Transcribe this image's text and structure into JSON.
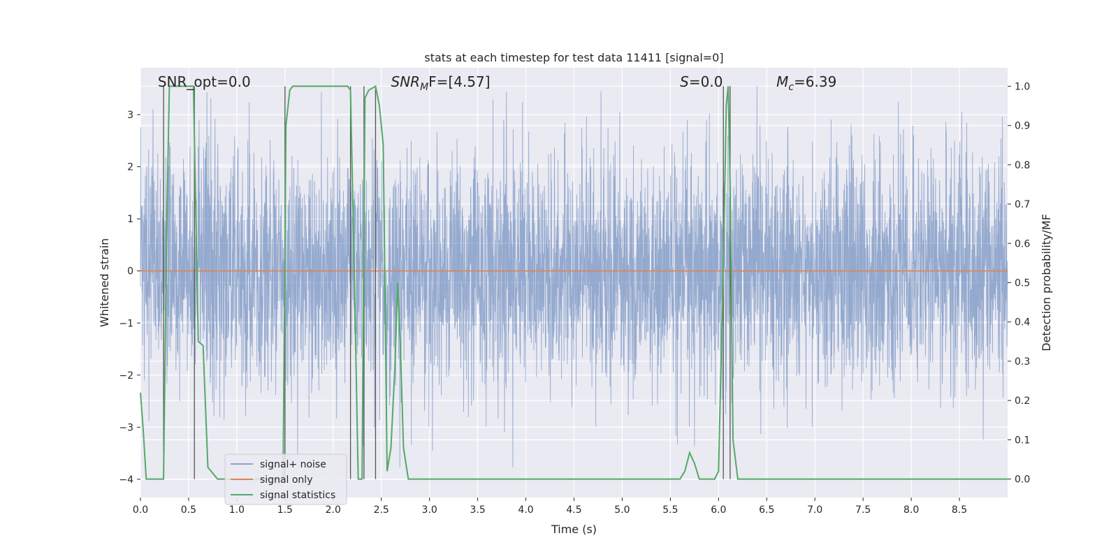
{
  "chart_data": {
    "type": "line",
    "title": "stats at each timestep for test data 11411 [signal=0]",
    "xlabel": "Time (s)",
    "ylabel": "Whitened strain",
    "y2label": "Detection probability/MF",
    "xlim": [
      0.0,
      9.0
    ],
    "ylim": [
      -4.35,
      3.9
    ],
    "y2lim": [
      -0.047,
      1.047
    ],
    "xticks": [
      "0.0",
      "0.5",
      "1.0",
      "1.5",
      "2.0",
      "2.5",
      "3.0",
      "3.5",
      "4.0",
      "4.5",
      "5.0",
      "5.5",
      "6.0",
      "6.5",
      "7.0",
      "7.5",
      "8.0",
      "8.5"
    ],
    "yticks": [
      "3",
      "2",
      "1",
      "0",
      "−1",
      "−2",
      "−3",
      "−4"
    ],
    "y2ticks": [
      "1.0",
      "0.9",
      "0.8",
      "0.7",
      "0.6",
      "0.5",
      "0.4",
      "0.3",
      "0.2",
      "0.1",
      "0.0"
    ],
    "grid": true,
    "legend_position": "lower-left",
    "annotations": [
      {
        "kind": "plain",
        "text": "SNR_opt=0.0",
        "x": 0.18
      },
      {
        "kind": "math",
        "base": "SNR",
        "sub": "M",
        "rest": "F=[4.57]",
        "x": 2.6
      },
      {
        "kind": "math",
        "base": "S",
        "sub": "",
        "rest": "=0.0",
        "x": 5.6
      },
      {
        "kind": "math",
        "base": "M",
        "sub": "c",
        "rest": "=6.39",
        "x": 6.6
      }
    ],
    "vlines_x": [
      0.24,
      0.56,
      1.5,
      2.18,
      2.32,
      2.44,
      6.05,
      6.12
    ],
    "series": [
      {
        "name": "signal+ noise",
        "color": "#4c72b0",
        "axis": "left",
        "style": "noise",
        "duration": 9.0,
        "sigma": 1.1
      },
      {
        "name": "signal only",
        "color": "#dd8452",
        "axis": "left",
        "x": [
          0.0,
          9.0
        ],
        "y": [
          0.0,
          0.0
        ]
      },
      {
        "name": "signal statistics",
        "color": "#55a868",
        "axis": "right",
        "x": [
          0.0,
          0.03,
          0.06,
          0.1,
          0.15,
          0.2,
          0.24,
          0.27,
          0.3,
          0.35,
          0.4,
          0.45,
          0.5,
          0.55,
          0.6,
          0.65,
          0.7,
          0.8,
          0.9,
          1.0,
          1.2,
          1.4,
          1.48,
          1.51,
          1.55,
          1.58,
          1.65,
          1.8,
          2.0,
          2.15,
          2.18,
          2.22,
          2.26,
          2.3,
          2.33,
          2.37,
          2.44,
          2.48,
          2.52,
          2.56,
          2.6,
          2.64,
          2.67,
          2.7,
          2.73,
          2.78,
          2.82,
          2.9,
          3.0,
          3.5,
          4.0,
          4.5,
          5.0,
          5.5,
          5.6,
          5.65,
          5.7,
          5.75,
          5.8,
          5.88,
          5.96,
          6.0,
          6.05,
          6.08,
          6.1,
          6.12,
          6.15,
          6.2,
          6.25,
          6.3,
          6.5,
          7.0,
          8.0,
          9.0
        ],
        "y": [
          0.22,
          0.12,
          0.0,
          0.0,
          0.0,
          0.0,
          0.0,
          0.6,
          1.0,
          1.0,
          1.0,
          1.0,
          1.0,
          1.0,
          0.35,
          0.34,
          0.03,
          0.0,
          0.0,
          0.0,
          0.0,
          0.0,
          0.0,
          0.9,
          0.99,
          1.0,
          1.0,
          1.0,
          1.0,
          1.0,
          0.99,
          0.52,
          0.0,
          0.0,
          0.97,
          0.99,
          1.0,
          0.95,
          0.85,
          0.02,
          0.08,
          0.28,
          0.5,
          0.32,
          0.08,
          0.0,
          0.0,
          0.0,
          0.0,
          0.0,
          0.0,
          0.0,
          0.0,
          0.0,
          0.0,
          0.02,
          0.067,
          0.04,
          0.0,
          0.0,
          0.0,
          0.02,
          0.55,
          0.95,
          1.0,
          0.75,
          0.1,
          0.0,
          0.0,
          0.0,
          0.0,
          0.0,
          0.0,
          0.0
        ]
      }
    ]
  }
}
